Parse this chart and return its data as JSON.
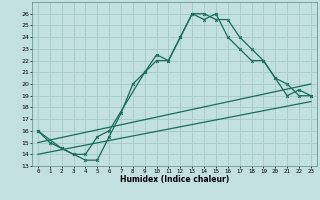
{
  "xlabel": "Humidex (Indice chaleur)",
  "bg_color": "#c2e0e0",
  "grid_color": "#a8cccc",
  "line_color": "#1a6b5a",
  "xlim": [
    -0.5,
    23.5
  ],
  "ylim": [
    13,
    27
  ],
  "yticks": [
    13,
    14,
    15,
    16,
    17,
    18,
    19,
    20,
    21,
    22,
    23,
    24,
    25,
    26
  ],
  "xticks": [
    0,
    1,
    2,
    3,
    4,
    5,
    6,
    7,
    8,
    9,
    10,
    11,
    12,
    13,
    14,
    15,
    16,
    17,
    18,
    19,
    20,
    21,
    22,
    23
  ],
  "line1_x": [
    0,
    1,
    2,
    3,
    4,
    5,
    6,
    7,
    8,
    9,
    10,
    11,
    12,
    13,
    14,
    15,
    16,
    17,
    18,
    19,
    20,
    21,
    22,
    23
  ],
  "line1_y": [
    16,
    15,
    14.5,
    14,
    13.5,
    13.5,
    15.5,
    17.5,
    20,
    21,
    22.5,
    22,
    24,
    26,
    26,
    25.5,
    25.5,
    24,
    23,
    22,
    20.5,
    19,
    19.5,
    19
  ],
  "line2_x": [
    0,
    2,
    3,
    4,
    5,
    6,
    9,
    10,
    11,
    12,
    13,
    14,
    15,
    16,
    17,
    18,
    19,
    20,
    21,
    22,
    23
  ],
  "line2_y": [
    16,
    14.5,
    14,
    14,
    15.5,
    16,
    21,
    22,
    22,
    24,
    26,
    25.5,
    26,
    24,
    23,
    22,
    22,
    20.5,
    20,
    19,
    19
  ],
  "line3_x": [
    0,
    23
  ],
  "line3_y": [
    15,
    20
  ],
  "line4_x": [
    0,
    23
  ],
  "line4_y": [
    14,
    18.5
  ]
}
